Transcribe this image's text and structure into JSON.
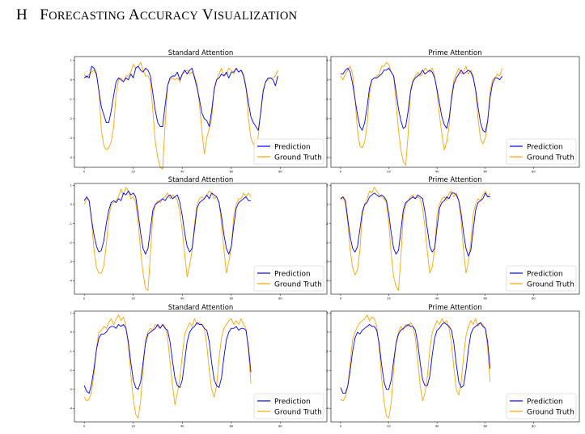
{
  "section": {
    "letter": "H",
    "title": "Forecasting Accuracy Visualization",
    "title_display": [
      {
        "cap": "F",
        "rest": "orecasting"
      },
      {
        "cap": "A",
        "rest": "ccuracy"
      },
      {
        "cap": "V",
        "rest": "isualization"
      }
    ]
  },
  "colors": {
    "prediction": "#0000ff",
    "ground_truth": "#ffa500"
  },
  "chart_data": [
    {
      "type": "line",
      "title": "Standard Attention",
      "xlabel": "",
      "ylabel": "",
      "xlim": [
        -4,
        99
      ],
      "ylim": [
        -4.5,
        1.2
      ],
      "x_ticks": [
        0,
        20,
        40,
        60,
        80
      ],
      "y_ticks": [
        1,
        0,
        -1,
        -2,
        -3,
        -4
      ],
      "legend": "bottom-right",
      "grid": false,
      "series": [
        {
          "name": "Prediction",
          "color": "#0000ff",
          "x_start": 0,
          "values": [
            0.1,
            0.2,
            0.1,
            0.7,
            0.6,
            0.3,
            -0.6,
            -1.4,
            -1.8,
            -2.2,
            -2.2,
            -1.6,
            -0.8,
            -0.1,
            0.1,
            0.0,
            -0.1,
            0.1,
            0.0,
            0.3,
            0.1,
            0.6,
            0.7,
            0.5,
            0.4,
            0.6,
            0.5,
            0.2,
            -0.7,
            -1.6,
            -2.2,
            -2.4,
            -2.4,
            -1.3,
            -0.3,
            0.1,
            0.2,
            0.2,
            0.4,
            0.0,
            0.3,
            0.5,
            0.3,
            0.5,
            0.6,
            0.1,
            -0.4,
            -1.0,
            -1.7,
            -2.0,
            -2.1,
            -2.4,
            -1.6,
            -0.5,
            0.0,
            0.1,
            0.3,
            0.2,
            0.4,
            0.1,
            0.4,
            0.4,
            0.6,
            0.4,
            0.5,
            0.2,
            -0.4,
            -1.2,
            -1.9,
            -2.2,
            -2.4,
            -2.6,
            -1.7,
            -0.6,
            -0.1,
            0.1,
            0.1,
            0.0,
            -0.3,
            0.2
          ]
        },
        {
          "name": "Ground Truth",
          "color": "#ffa500",
          "x_start": 0,
          "values": [
            0.3,
            0.1,
            0.3,
            0.4,
            0.5,
            0.2,
            -0.5,
            -2.6,
            -3.4,
            -3.6,
            -3.5,
            -3.2,
            -2.4,
            -0.7,
            0.0,
            0.1,
            -0.1,
            0.2,
            0.2,
            0.4,
            0.8,
            0.6,
            0.7,
            0.9,
            0.5,
            0.2,
            0.2,
            -0.1,
            -1.6,
            -3.2,
            -4.0,
            -4.5,
            -4.6,
            -2.3,
            -0.3,
            0.0,
            0.1,
            0.0,
            0.1,
            -0.1,
            0.3,
            0.4,
            0.5,
            0.3,
            0.4,
            0.2,
            -0.2,
            -1.3,
            -2.6,
            -3.8,
            -3.0,
            -2.5,
            -2.0,
            -0.4,
            0.0,
            0.3,
            0.6,
            0.2,
            0.3,
            0.6,
            0.5,
            0.3,
            0.6,
            0.4,
            0.5,
            0.3,
            -0.3,
            -2.0,
            -3.0,
            -3.3,
            -3.5,
            -2.9,
            -1.6,
            -0.5,
            -0.1,
            0.0,
            0.1,
            0.1,
            0.2,
            0.5
          ]
        }
      ]
    },
    {
      "type": "line",
      "title": "Prime Attention",
      "xlabel": "",
      "ylabel": "",
      "xlim": [
        -4,
        99
      ],
      "ylim": [
        -4.5,
        1.2
      ],
      "x_ticks": [
        0,
        20,
        40,
        60,
        80
      ],
      "y_ticks": [
        1,
        0,
        -1,
        -2,
        -3,
        -4
      ],
      "legend": "bottom-right",
      "grid": false,
      "series": [
        {
          "name": "Prediction",
          "color": "#0000ff",
          "x_start": 0,
          "values": [
            0.3,
            0.3,
            0.5,
            0.6,
            0.4,
            -0.2,
            -1.0,
            -1.8,
            -2.4,
            -2.6,
            -2.2,
            -1.4,
            -0.4,
            0.0,
            0.1,
            0.1,
            0.2,
            0.3,
            0.5,
            0.5,
            0.6,
            0.4,
            0.2,
            -0.6,
            -1.5,
            -2.1,
            -2.5,
            -2.4,
            -1.6,
            -0.6,
            -0.1,
            0.1,
            0.2,
            0.3,
            0.5,
            0.3,
            0.4,
            0.5,
            0.4,
            0.1,
            -0.5,
            -1.2,
            -1.9,
            -2.3,
            -2.5,
            -2.0,
            -1.0,
            -0.2,
            0.1,
            0.3,
            0.5,
            0.3,
            0.4,
            0.5,
            0.4,
            0.1,
            -0.5,
            -1.4,
            -2.2,
            -2.6,
            -2.7,
            -2.1,
            -0.9,
            -0.2,
            0.1,
            0.1,
            0.0,
            0.2
          ]
        },
        {
          "name": "Ground Truth",
          "color": "#ffa500",
          "x_start": 0,
          "values": [
            0.2,
            0.0,
            0.3,
            0.5,
            0.7,
            0.3,
            -1.0,
            -2.6,
            -3.4,
            -3.5,
            -3.2,
            -2.3,
            -0.7,
            0.0,
            0.1,
            0.2,
            0.3,
            0.7,
            0.7,
            0.9,
            0.8,
            0.4,
            0.2,
            -1.2,
            -2.6,
            -3.6,
            -4.2,
            -4.4,
            -2.8,
            -0.5,
            0.0,
            0.2,
            0.4,
            0.2,
            0.3,
            0.6,
            0.5,
            0.4,
            0.6,
            0.2,
            -0.6,
            -1.8,
            -2.8,
            -3.6,
            -3.2,
            -2.4,
            -0.8,
            0.0,
            0.3,
            0.6,
            0.3,
            0.4,
            0.7,
            0.3,
            0.5,
            0.2,
            -0.6,
            -2.0,
            -3.0,
            -3.3,
            -3.0,
            -2.2,
            -0.6,
            0.0,
            0.1,
            0.3,
            0.2,
            0.6
          ]
        }
      ]
    },
    {
      "type": "line",
      "title": "Standard Attention",
      "xlabel": "",
      "ylabel": "",
      "xlim": [
        -4,
        99
      ],
      "ylim": [
        -4.7,
        1.1
      ],
      "x_ticks": [
        0,
        20,
        40,
        60,
        80
      ],
      "y_ticks": [
        1,
        0,
        -1,
        -2,
        -3,
        -4
      ],
      "legend": "bottom-right",
      "grid": false,
      "series": [
        {
          "name": "Prediction",
          "color": "#0000ff",
          "x_start": 0,
          "values": [
            0.2,
            0.4,
            0.2,
            -0.8,
            -1.6,
            -2.2,
            -2.5,
            -2.4,
            -1.9,
            -1.0,
            -0.3,
            0.1,
            0.2,
            0.1,
            0.3,
            0.2,
            0.6,
            0.5,
            0.7,
            0.5,
            0.6,
            0.4,
            -0.5,
            -1.5,
            -2.3,
            -2.6,
            -2.3,
            -1.3,
            -0.3,
            0.0,
            0.1,
            0.2,
            0.3,
            0.2,
            0.4,
            0.5,
            0.3,
            0.4,
            0.5,
            0.1,
            -0.6,
            -1.5,
            -2.2,
            -2.5,
            -2.3,
            -1.3,
            -0.2,
            0.1,
            0.2,
            0.3,
            0.5,
            0.3,
            0.6,
            0.5,
            0.4,
            0.1,
            -0.6,
            -1.6,
            -2.3,
            -2.6,
            -2.2,
            -1.1,
            -0.2,
            0.1,
            0.2,
            0.3,
            0.4,
            0.2,
            0.2
          ]
        },
        {
          "name": "Ground Truth",
          "color": "#ffa500",
          "x_start": 0,
          "values": [
            0.0,
            0.3,
            0.2,
            -0.9,
            -2.4,
            -3.3,
            -3.6,
            -3.6,
            -3.2,
            -2.1,
            -0.7,
            0.0,
            0.1,
            0.2,
            0.4,
            0.8,
            0.5,
            0.9,
            0.7,
            0.3,
            0.4,
            0.1,
            -1.0,
            -2.4,
            -3.6,
            -4.4,
            -4.5,
            -2.6,
            -0.6,
            0.0,
            0.2,
            0.1,
            0.3,
            0.4,
            0.6,
            0.3,
            0.5,
            0.4,
            0.2,
            -0.4,
            -1.4,
            -2.6,
            -3.8,
            -3.2,
            -2.4,
            -1.0,
            0.0,
            0.3,
            0.4,
            0.3,
            0.5,
            0.7,
            0.6,
            0.3,
            0.4,
            0.1,
            -1.0,
            -2.4,
            -3.6,
            -3.0,
            -2.2,
            -0.6,
            0.0,
            0.3,
            0.3,
            0.6,
            0.4,
            0.6,
            0.4
          ]
        }
      ]
    },
    {
      "type": "line",
      "title": "Prime Attention",
      "xlabel": "",
      "ylabel": "",
      "xlim": [
        -4,
        99
      ],
      "ylim": [
        -4.7,
        1.1
      ],
      "x_ticks": [
        0,
        20,
        40,
        60,
        80
      ],
      "y_ticks": [
        1,
        0,
        -1,
        -2,
        -3,
        -4
      ],
      "legend": "bottom-right",
      "grid": false,
      "series": [
        {
          "name": "Prediction",
          "color": "#0000ff",
          "x_start": 0,
          "values": [
            0.3,
            0.4,
            0.2,
            -0.8,
            -1.7,
            -2.3,
            -2.5,
            -2.2,
            -1.3,
            -0.4,
            0.0,
            0.1,
            0.4,
            0.5,
            0.6,
            0.5,
            0.4,
            0.5,
            0.4,
            0.2,
            -0.5,
            -1.5,
            -2.3,
            -2.6,
            -2.4,
            -1.4,
            -0.3,
            0.1,
            0.2,
            0.3,
            0.4,
            0.3,
            0.5,
            0.4,
            0.3,
            -0.4,
            -1.3,
            -2.2,
            -2.5,
            -2.3,
            -1.2,
            -0.2,
            0.1,
            0.2,
            0.4,
            0.3,
            0.6,
            0.6,
            0.5,
            0.2,
            -0.5,
            -1.5,
            -2.3,
            -2.7,
            -2.4,
            -1.3,
            -0.3,
            0.1,
            0.2,
            0.3,
            0.6,
            0.4,
            0.4
          ]
        },
        {
          "name": "Ground Truth",
          "color": "#ffa500",
          "x_start": 0,
          "values": [
            0.2,
            0.4,
            0.0,
            -1.0,
            -2.4,
            -3.3,
            -3.7,
            -3.4,
            -2.4,
            -0.6,
            0.0,
            0.3,
            0.7,
            0.6,
            0.9,
            0.7,
            0.5,
            0.4,
            0.3,
            0.1,
            -1.0,
            -2.6,
            -3.8,
            -4.3,
            -4.5,
            -2.8,
            -0.6,
            0.0,
            0.2,
            0.4,
            0.5,
            0.3,
            0.4,
            0.3,
            -0.2,
            -1.2,
            -2.5,
            -3.6,
            -3.3,
            -2.3,
            -0.6,
            0.0,
            0.3,
            0.4,
            0.2,
            0.6,
            0.7,
            0.4,
            0.6,
            0.2,
            -0.9,
            -2.4,
            -3.6,
            -3.0,
            -2.0,
            -0.5,
            0.0,
            0.3,
            0.2,
            0.5,
            0.7,
            0.4,
            0.6
          ]
        }
      ]
    },
    {
      "type": "line",
      "title": "Standard Attention",
      "xlabel": "",
      "ylabel": "",
      "xlim": [
        -4,
        99
      ],
      "ylim": [
        -4.7,
        1.1
      ],
      "x_ticks": [
        0,
        20,
        40,
        60,
        80
      ],
      "y_ticks": [
        1,
        0,
        -1,
        -2,
        -3,
        -4
      ],
      "legend": "bottom-right",
      "grid": false,
      "series": [
        {
          "name": "Prediction",
          "color": "#0000ff",
          "x_start": 0,
          "values": [
            -2.8,
            -3.1,
            -3.2,
            -2.7,
            -1.9,
            -0.9,
            -0.3,
            -0.1,
            -0.1,
            0.0,
            0.2,
            0.3,
            0.3,
            0.2,
            0.4,
            0.3,
            0.4,
            0.2,
            -0.5,
            -1.6,
            -2.5,
            -2.9,
            -3.0,
            -2.6,
            -1.6,
            -0.6,
            -0.1,
            0.0,
            0.1,
            0.2,
            0.4,
            0.2,
            0.4,
            0.2,
            0.1,
            -0.5,
            -1.5,
            -2.4,
            -2.8,
            -2.9,
            -2.5,
            -1.5,
            -0.5,
            0.0,
            0.2,
            0.3,
            0.5,
            0.4,
            0.4,
            0.2,
            0.1,
            -0.5,
            -1.6,
            -2.5,
            -2.8,
            -2.9,
            -2.4,
            -1.3,
            -0.4,
            0.0,
            0.2,
            0.2,
            0.3,
            0.1,
            0.2,
            0.2,
            0.1,
            -0.8,
            -2.1
          ]
        },
        {
          "name": "Ground Truth",
          "color": "#ffa500",
          "x_start": 0,
          "values": [
            -3.4,
            -3.6,
            -3.5,
            -3.1,
            -2.2,
            -0.8,
            0.0,
            0.1,
            0.3,
            0.2,
            0.5,
            0.7,
            0.4,
            0.7,
            0.9,
            0.6,
            0.8,
            0.3,
            -0.7,
            -2.2,
            -3.5,
            -4.3,
            -4.5,
            -3.6,
            -2.0,
            -0.4,
            0.0,
            0.2,
            0.1,
            0.4,
            0.3,
            0.2,
            0.4,
            0.3,
            -0.3,
            -1.5,
            -2.8,
            -3.8,
            -3.2,
            -2.4,
            -1.2,
            -0.1,
            0.2,
            0.5,
            0.3,
            0.7,
            0.4,
            0.5,
            0.4,
            0.2,
            -0.7,
            -2.0,
            -3.0,
            -3.4,
            -2.8,
            -1.4,
            -0.3,
            0.2,
            0.4,
            0.6,
            0.7,
            0.4,
            0.6,
            0.4,
            0.7,
            0.4,
            0.2,
            -1.0,
            -2.7
          ]
        }
      ]
    },
    {
      "type": "line",
      "title": "Prime Attention",
      "xlabel": "",
      "ylabel": "",
      "xlim": [
        -4,
        99
      ],
      "ylim": [
        -4.7,
        1.1
      ],
      "x_ticks": [
        0,
        20,
        40,
        60,
        80
      ],
      "y_ticks": [
        1,
        0,
        -1,
        -2,
        -3,
        -4
      ],
      "legend": "bottom-right",
      "grid": false,
      "series": [
        {
          "name": "Prediction",
          "color": "#0000ff",
          "x_start": 0,
          "values": [
            -2.9,
            -3.2,
            -3.2,
            -2.8,
            -2.0,
            -1.0,
            -0.3,
            0.0,
            -0.1,
            0.1,
            0.2,
            0.3,
            0.4,
            0.3,
            0.3,
            0.1,
            -0.6,
            -1.7,
            -2.6,
            -3.0,
            -3.0,
            -2.5,
            -1.5,
            -0.6,
            -0.1,
            0.1,
            0.2,
            0.3,
            0.4,
            0.3,
            0.3,
            0.1,
            -0.6,
            -1.6,
            -2.5,
            -2.8,
            -2.8,
            -2.3,
            -1.2,
            -0.3,
            0.1,
            0.2,
            0.4,
            0.5,
            0.4,
            0.3,
            0.1,
            -0.6,
            -1.7,
            -2.6,
            -2.9,
            -2.8,
            -2.0,
            -0.9,
            -0.1,
            0.2,
            0.3,
            0.4,
            0.5,
            0.3,
            0.2,
            -0.5,
            -1.9
          ]
        },
        {
          "name": "Ground Truth",
          "color": "#ffa500",
          "x_start": 0,
          "values": [
            -3.5,
            -3.6,
            -3.4,
            -2.8,
            -1.6,
            -0.4,
            0.0,
            0.3,
            0.5,
            0.6,
            0.7,
            0.9,
            0.6,
            0.8,
            0.7,
            0.3,
            -0.8,
            -2.4,
            -3.6,
            -4.4,
            -4.5,
            -3.7,
            -2.0,
            -0.5,
            0.0,
            0.3,
            0.1,
            0.4,
            0.3,
            0.5,
            0.3,
            -0.3,
            -1.5,
            -2.8,
            -3.6,
            -3.2,
            -2.3,
            -0.9,
            0.0,
            0.3,
            0.6,
            0.4,
            0.7,
            0.5,
            0.6,
            0.2,
            -0.6,
            -1.9,
            -3.0,
            -3.3,
            -2.6,
            -1.3,
            -0.2,
            0.3,
            0.6,
            0.4,
            0.7,
            0.3,
            0.5,
            0.4,
            0.2,
            -0.9,
            -2.6
          ]
        }
      ]
    }
  ]
}
